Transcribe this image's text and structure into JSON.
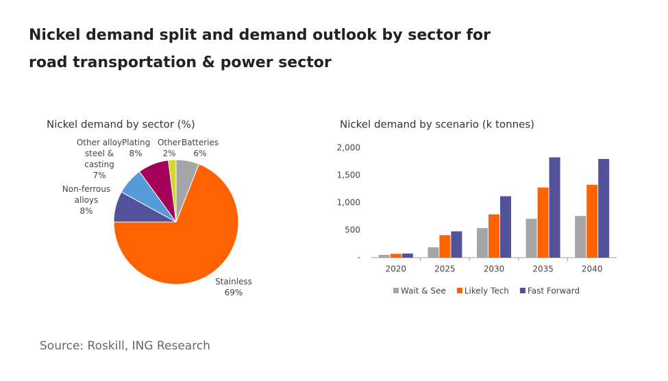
{
  "title": "Nickel demand split and demand outlook by sector for road transportation & power sector",
  "source": "Source: Roskill, ING Research",
  "chart_data": [
    {
      "type": "pie",
      "title": "Nickel demand by sector (%)",
      "categories": [
        "Batteries",
        "Stainless",
        "Non-ferrous alloys",
        "Other alloy steel & casting",
        "Plating",
        "Other"
      ],
      "values": [
        6,
        69,
        8,
        7,
        8,
        2
      ],
      "value_labels": [
        "6%",
        "69%",
        "8%",
        "7%",
        "8%",
        "2%"
      ],
      "colors": [
        "#a6a6a6",
        "#ff6200",
        "#525199",
        "#559bd9",
        "#a5005a",
        "#d0d92b"
      ]
    },
    {
      "type": "bar",
      "title": "Nickel demand by scenario (k tonnes)",
      "categories": [
        "2020",
        "2025",
        "2030",
        "2035",
        "2040"
      ],
      "series": [
        {
          "name": "Wait & See",
          "color": "#a6a6a6",
          "values": [
            50,
            190,
            540,
            710,
            760
          ]
        },
        {
          "name": "Likely Tech",
          "color": "#ff6200",
          "values": [
            70,
            410,
            790,
            1280,
            1330
          ]
        },
        {
          "name": "Fast Forward",
          "color": "#525199",
          "values": [
            75,
            480,
            1120,
            1830,
            1800
          ]
        }
      ],
      "ylim": [
        0,
        2000
      ],
      "yticks": [
        {
          "value": 0,
          "label": "-"
        },
        500,
        {
          "value": 1000,
          "label": "1,000"
        },
        {
          "value": 1500,
          "label": "1,500"
        },
        {
          "value": 2000,
          "label": "2,000"
        }
      ],
      "grid": false,
      "legend": "bottom"
    }
  ]
}
